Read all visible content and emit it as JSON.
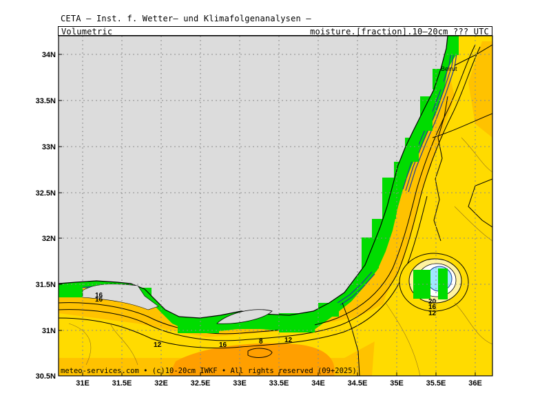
{
  "header": {
    "title": "CETA — Inst. f. Wetter— und Klimafolgenanalysen —",
    "left_label": "Volumetric",
    "right_label": "moisture.[fraction].10—20cm ??? UTC"
  },
  "axes": {
    "lon_ticks": [
      "31E",
      "31.5E",
      "32E",
      "32.5E",
      "33E",
      "33.5E",
      "34E",
      "34.5E",
      "35E",
      "35.5E",
      "36E"
    ],
    "lat_ticks": [
      "34N",
      "33.5N",
      "33N",
      "32.5N",
      "32N",
      "31.5N",
      "31N",
      "30.5N"
    ]
  },
  "places": {
    "beirut": "Beirut"
  },
  "contour_labels": [
    "16",
    "16",
    "12",
    "16",
    "8",
    "12",
    "20",
    "16",
    "12"
  ],
  "footer": "meteo-services.com • (c)10-20cm IWKF • All rights reserved (09+2025)",
  "colors": {
    "sea": "#dcdcdc",
    "land_yellow": "#ffdb00",
    "land_orange_light": "#ffc200",
    "land_orange": "#ff9f00",
    "coast_green": "#00dc00",
    "wet_blue": "#1e3c96"
  }
}
